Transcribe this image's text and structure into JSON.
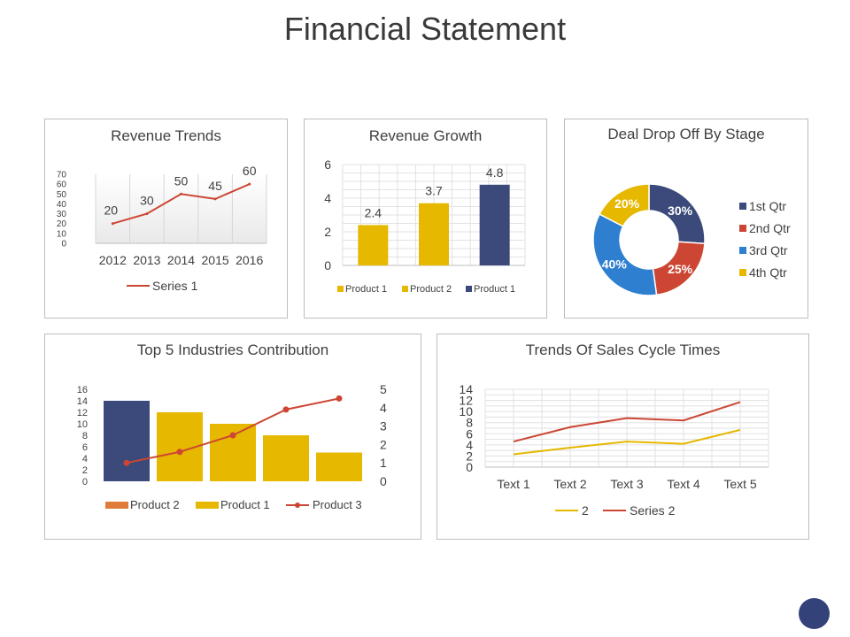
{
  "page": {
    "title": "Financial Statement"
  },
  "colors": {
    "navy": "#3b4a7a",
    "gold": "#e6b800",
    "red": "#cc4633",
    "blue": "#2e7fd0",
    "orange": "#e07b39",
    "dark_dot": "#34427a"
  },
  "chart_data": [
    {
      "id": "revenue-trends",
      "type": "line",
      "title": "Revenue Trends",
      "categories": [
        "2012",
        "2013",
        "2014",
        "2015",
        "2016"
      ],
      "series": [
        {
          "name": "Series 1",
          "values": [
            20,
            30,
            50,
            45,
            60
          ],
          "color": "#cc4633"
        }
      ],
      "ylim": [
        0,
        70
      ],
      "yticks": [
        0,
        10,
        20,
        30,
        40,
        50,
        60,
        70
      ],
      "data_labels": true,
      "legend": "bottom"
    },
    {
      "id": "revenue-growth",
      "type": "bar",
      "title": "Revenue Growth",
      "categories": [
        "",
        "",
        ""
      ],
      "values": [
        2.4,
        3.7,
        4.8
      ],
      "bar_colors": [
        "#e6b800",
        "#e6b800",
        "#3b4a7a"
      ],
      "legend_entries": [
        "Product 1",
        "Product 2",
        "Product 1"
      ],
      "ylim": [
        0,
        6
      ],
      "yticks": [
        0,
        2,
        4,
        6
      ],
      "data_labels": true,
      "grid": true,
      "legend": "bottom"
    },
    {
      "id": "deal-drop-off",
      "type": "pie",
      "title": "Deal Drop Off By Stage",
      "labels": [
        "1st Qtr",
        "2nd Qtr",
        "3rd Qtr",
        "4th Qtr"
      ],
      "values": [
        30,
        25,
        40,
        20
      ],
      "value_labels": [
        "30%",
        "25%",
        "40%",
        "20%"
      ],
      "colors": [
        "#3b4a7a",
        "#cc4633",
        "#2e7fd0",
        "#e6b800"
      ],
      "donut": true,
      "legend": "right"
    },
    {
      "id": "top-5-industries",
      "type": "bar",
      "title": "Top 5 Industries Contribution",
      "categories": [
        "",
        "",
        "",
        "",
        ""
      ],
      "bars": [
        14,
        12,
        10,
        8,
        5
      ],
      "bar_colors": [
        "#3b4a7a",
        "#e6b800",
        "#e6b800",
        "#e6b800",
        "#e6b800"
      ],
      "line": {
        "name": "Product 3",
        "values": [
          1,
          1.6,
          2.5,
          3.9,
          4.5
        ],
        "color": "#cc4633"
      },
      "series_legend": [
        {
          "name": "Product 2",
          "color": "#e07b39",
          "kind": "bar"
        },
        {
          "name": "Product 1",
          "color": "#e6b800",
          "kind": "bar"
        },
        {
          "name": "Product 3",
          "color": "#cc4633",
          "kind": "line"
        }
      ],
      "ylim": [
        0,
        16
      ],
      "yticks": [
        0,
        2,
        4,
        6,
        8,
        10,
        12,
        14,
        16
      ],
      "y2lim": [
        0,
        5
      ],
      "y2ticks": [
        0,
        1,
        2,
        3,
        4,
        5
      ],
      "legend": "bottom"
    },
    {
      "id": "sales-cycle",
      "type": "line",
      "title": "Trends Of Sales Cycle Times",
      "categories": [
        "Text 1",
        "Text 2",
        "Text 3",
        "Text 4",
        "Text 5"
      ],
      "series": [
        {
          "name": "2",
          "values": [
            2.3,
            3.5,
            4.6,
            4.2,
            6.7
          ],
          "color": "#e6b800"
        },
        {
          "name": "Series 2",
          "values": [
            4.6,
            7.2,
            8.8,
            8.4,
            11.7
          ],
          "color": "#cc4633"
        }
      ],
      "ylim": [
        0,
        14
      ],
      "yticks": [
        0,
        2,
        4,
        6,
        8,
        10,
        12,
        14
      ],
      "grid": true,
      "legend": "bottom"
    }
  ]
}
